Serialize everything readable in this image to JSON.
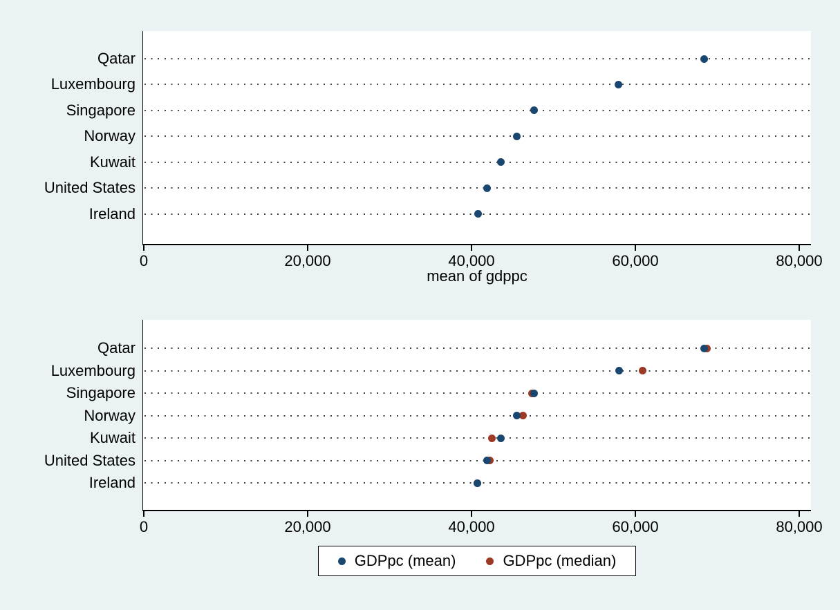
{
  "colors": {
    "background": "#eaf2f3",
    "plot_background": "#ffffff",
    "axis": "#000000",
    "grid_dots": "#404040",
    "text": "#000000",
    "mean": "#1a476f",
    "median": "#9c3a26"
  },
  "chart_data": [
    {
      "type": "scatter",
      "subtype": "horizontal-dot-plot",
      "title": "",
      "categories": [
        "Qatar",
        "Luxembourg",
        "Singapore",
        "Norway",
        "Kuwait",
        "United States",
        "Ireland"
      ],
      "series": [
        {
          "name": "mean of gdppc",
          "color_key": "mean",
          "values": [
            68400,
            57900,
            47600,
            45500,
            43600,
            41900,
            40800
          ]
        }
      ],
      "xlabel": "mean of gdppc",
      "xlim": [
        0,
        81400
      ],
      "xticks": [
        0,
        20000,
        40000,
        60000,
        80000
      ],
      "xtick_labels": [
        "0",
        "20,000",
        "40,000",
        "60,000",
        "80,000"
      ],
      "grid": "dotted-horizontal",
      "legend": null
    },
    {
      "type": "scatter",
      "subtype": "horizontal-dot-plot",
      "title": "",
      "categories": [
        "Qatar",
        "Luxembourg",
        "Singapore",
        "Norway",
        "Kuwait",
        "United States",
        "Ireland"
      ],
      "series": [
        {
          "name": "GDPpc (mean)",
          "color_key": "mean",
          "values": [
            68400,
            58000,
            47600,
            45500,
            43600,
            41900,
            40700
          ]
        },
        {
          "name": "GDPpc (median)",
          "color_key": "median",
          "values": [
            68700,
            60900,
            47400,
            46300,
            42500,
            42200,
            40700
          ]
        }
      ],
      "xlabel": "",
      "xlim": [
        0,
        81400
      ],
      "xticks": [
        0,
        20000,
        40000,
        60000,
        80000
      ],
      "xtick_labels": [
        "0",
        "20,000",
        "40,000",
        "60,000",
        "80,000"
      ],
      "grid": "dotted-horizontal",
      "legend": {
        "position": "bottom-center"
      }
    }
  ]
}
